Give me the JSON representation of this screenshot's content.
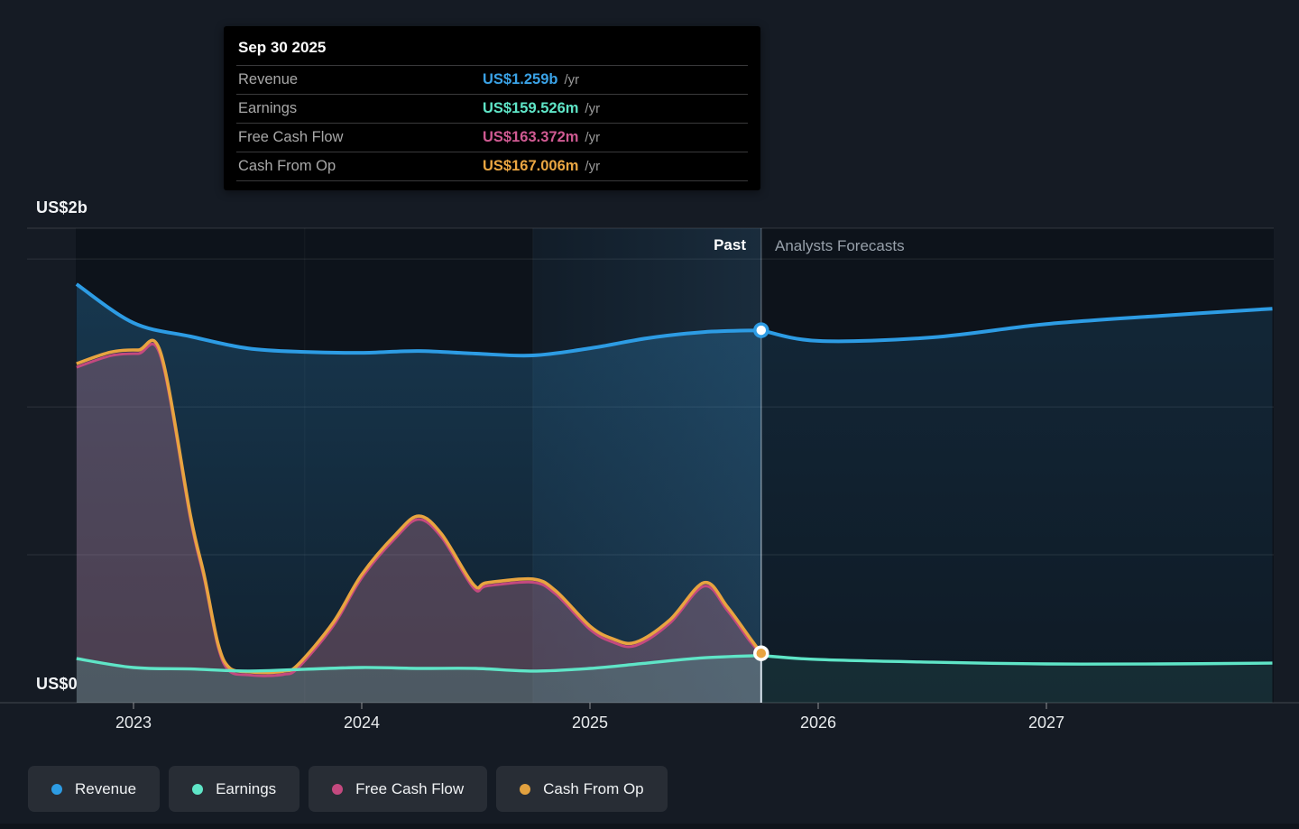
{
  "chart": {
    "header": {
      "past_label": "Past",
      "forecasts_label": "Analysts Forecasts"
    },
    "axis": {
      "y_top_label": "US$2b",
      "y_zero_label": "US$0"
    }
  },
  "tooltip": {
    "title": "Sep 30 2025",
    "rows": [
      {
        "label": "Revenue",
        "value": "US$1.259b",
        "suffix": "/yr",
        "color": "#3aa2e6"
      },
      {
        "label": "Earnings",
        "value": "US$159.526m",
        "suffix": "/yr",
        "color": "#5fe5c7"
      },
      {
        "label": "Free Cash Flow",
        "value": "US$163.372m",
        "suffix": "/yr",
        "color": "#cf5a92"
      },
      {
        "label": "Cash From Op",
        "value": "US$167.006m",
        "suffix": "/yr",
        "color": "#eaa642"
      }
    ]
  },
  "legend": {
    "items": [
      {
        "label": "Revenue",
        "color": "#2d9ce4"
      },
      {
        "label": "Earnings",
        "color": "#5fe5c7"
      },
      {
        "label": "Free Cash Flow",
        "color": "#c4497f"
      },
      {
        "label": "Cash From Op",
        "color": "#e2a13f"
      }
    ]
  },
  "chart_data": {
    "type": "area",
    "title": "Past and future earnings, revenue and cash flow",
    "unit": "US$ millions per year",
    "x_unit": "decimal year",
    "x_range": [
      2022.747,
      2027.996
    ],
    "ylim": [
      0,
      1604
    ],
    "gridline_values": [
      500,
      1000,
      1500
    ],
    "x_ticks": [
      2023,
      2024,
      2025,
      2026,
      2027
    ],
    "divider_x": 2025.75,
    "highlight_band": [
      2024.75,
      2025.75
    ],
    "fiscal_year_guides": [
      2023.75,
      2024.75
    ],
    "legend_position": "bottom",
    "series": [
      {
        "name": "Revenue",
        "color": "#2d9ce4",
        "past": [
          [
            2022.75,
            1415
          ],
          [
            2023.0,
            1284
          ],
          [
            2023.25,
            1238
          ],
          [
            2023.5,
            1198
          ],
          [
            2023.75,
            1186
          ],
          [
            2024.0,
            1183
          ],
          [
            2024.25,
            1189
          ],
          [
            2024.5,
            1180
          ],
          [
            2024.75,
            1174
          ],
          [
            2025.0,
            1198
          ],
          [
            2025.25,
            1232
          ],
          [
            2025.5,
            1253
          ],
          [
            2025.75,
            1259
          ]
        ],
        "forecast": [
          [
            2025.75,
            1259
          ],
          [
            2026.0,
            1223
          ],
          [
            2026.5,
            1235
          ],
          [
            2027.0,
            1280
          ],
          [
            2027.5,
            1308
          ],
          [
            2027.99,
            1332
          ]
        ]
      },
      {
        "name": "Earnings",
        "color": "#5fe5c7",
        "past": [
          [
            2022.75,
            149
          ],
          [
            2023.0,
            119
          ],
          [
            2023.25,
            114
          ],
          [
            2023.5,
            107
          ],
          [
            2023.75,
            113
          ],
          [
            2024.0,
            119
          ],
          [
            2024.25,
            116
          ],
          [
            2024.5,
            116
          ],
          [
            2024.75,
            107
          ],
          [
            2025.0,
            116
          ],
          [
            2025.25,
            134
          ],
          [
            2025.5,
            152
          ],
          [
            2025.75,
            159.526
          ]
        ],
        "forecast": [
          [
            2025.75,
            159.526
          ],
          [
            2026.0,
            146
          ],
          [
            2026.5,
            137
          ],
          [
            2027.0,
            131
          ],
          [
            2027.5,
            131
          ],
          [
            2027.99,
            134
          ]
        ]
      },
      {
        "name": "Free Cash Flow",
        "color": "#c4497f",
        "past": [
          [
            2022.75,
            1134
          ],
          [
            2022.9,
            1173
          ],
          [
            2023.02,
            1180
          ],
          [
            2023.12,
            1168
          ],
          [
            2023.25,
            618
          ],
          [
            2023.31,
            419
          ],
          [
            2023.37,
            190
          ],
          [
            2023.42,
            107
          ],
          [
            2023.5,
            94
          ],
          [
            2023.58,
            91
          ],
          [
            2023.66,
            96
          ],
          [
            2023.72,
            117
          ],
          [
            2023.875,
            260
          ],
          [
            2024.0,
            422
          ],
          [
            2024.15,
            559
          ],
          [
            2024.25,
            620
          ],
          [
            2024.35,
            559
          ],
          [
            2024.49,
            388
          ],
          [
            2024.55,
            395
          ],
          [
            2024.75,
            407
          ],
          [
            2024.85,
            367
          ],
          [
            2025.0,
            248
          ],
          [
            2025.1,
            205
          ],
          [
            2025.2,
            193
          ],
          [
            2025.35,
            269
          ],
          [
            2025.5,
            394
          ],
          [
            2025.6,
            314
          ],
          [
            2025.7,
            209
          ],
          [
            2025.75,
            163.372
          ]
        ],
        "forecast": null
      },
      {
        "name": "Cash From Op",
        "color": "#e8a440",
        "past": [
          [
            2022.75,
            1146
          ],
          [
            2022.9,
            1185
          ],
          [
            2023.02,
            1192
          ],
          [
            2023.12,
            1180
          ],
          [
            2023.25,
            630
          ],
          [
            2023.31,
            430
          ],
          [
            2023.37,
            200
          ],
          [
            2023.42,
            118
          ],
          [
            2023.5,
            105
          ],
          [
            2023.58,
            102
          ],
          [
            2023.66,
            107
          ],
          [
            2023.72,
            128
          ],
          [
            2023.875,
            271
          ],
          [
            2024.0,
            433
          ],
          [
            2024.15,
            570
          ],
          [
            2024.25,
            631
          ],
          [
            2024.35,
            570
          ],
          [
            2024.49,
            399
          ],
          [
            2024.55,
            406
          ],
          [
            2024.75,
            418
          ],
          [
            2024.85,
            378
          ],
          [
            2025.0,
            259
          ],
          [
            2025.1,
            216
          ],
          [
            2025.2,
            204
          ],
          [
            2025.35,
            280
          ],
          [
            2025.5,
            406
          ],
          [
            2025.6,
            326
          ],
          [
            2025.7,
            220
          ],
          [
            2025.75,
            167.006
          ]
        ],
        "forecast": null
      }
    ],
    "markers": [
      {
        "series": "Revenue",
        "x": 2025.75,
        "value": 1259
      },
      {
        "series": "Cash From Op",
        "x": 2025.75,
        "value": 167.006
      }
    ]
  }
}
